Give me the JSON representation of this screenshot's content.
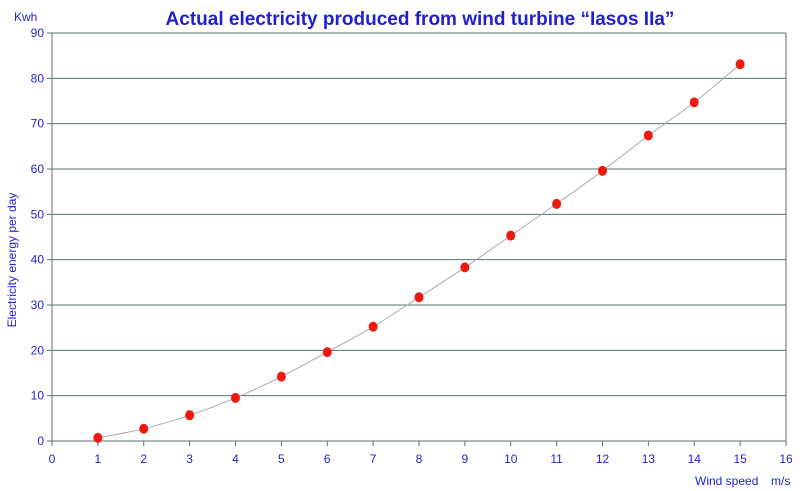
{
  "chart_data": {
    "type": "scatter",
    "title": "Actual electricity produced from wind turbine “Iasos IIa”",
    "xlabel": "Wind speed",
    "x_unit": "m/s",
    "ylabel": "Electricity energy per day",
    "y_unit": "Kwh",
    "xlim": [
      0,
      16
    ],
    "ylim": [
      0,
      90
    ],
    "x_ticks": [
      "0",
      "1",
      "2",
      "3",
      "4",
      "5",
      "6",
      "7",
      "8",
      "9",
      "10",
      "11",
      "12",
      "13",
      "14",
      "15",
      "16"
    ],
    "y_ticks": [
      "0",
      "10",
      "20",
      "30",
      "40",
      "50",
      "60",
      "70",
      "80",
      "90"
    ],
    "grid": "horizontal",
    "marker_color": "#ee1a10",
    "trend_color": "#a9a9b3",
    "text_color": "#1f1fd6",
    "grid_color": "#5c6f6f",
    "series": [
      {
        "x": [
          1,
          2,
          3,
          4,
          5,
          6,
          7,
          8,
          9,
          10,
          11,
          12,
          13,
          14,
          15
        ],
        "y": [
          0.7,
          2.7,
          5.7,
          9.5,
          14.2,
          19.6,
          25.2,
          31.7,
          38.3,
          45.3,
          52.3,
          59.6,
          67.4,
          74.7,
          83.1
        ]
      }
    ]
  }
}
